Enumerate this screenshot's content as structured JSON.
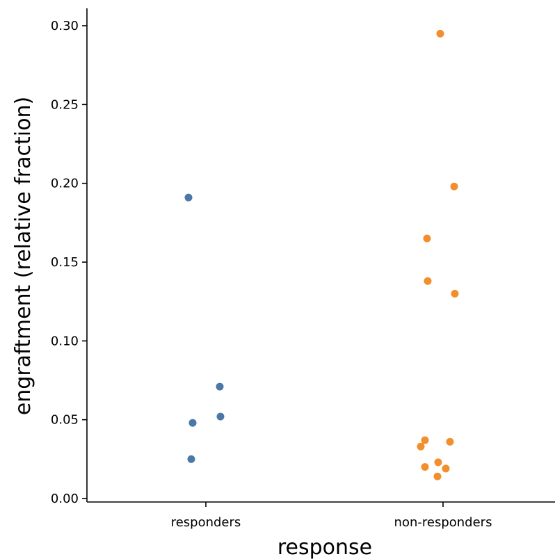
{
  "chart_data": {
    "type": "scatter",
    "xlabel": "response",
    "ylabel": "engraftment (relative fraction)",
    "categories": [
      "responders",
      "non-responders"
    ],
    "ylim": [
      -0.003,
      0.312
    ],
    "y_ticks": [
      0.0,
      0.05,
      0.1,
      0.15,
      0.2,
      0.25,
      0.3
    ],
    "y_tick_labels": [
      "0.00",
      "0.05",
      "0.10",
      "0.15",
      "0.20",
      "0.25",
      "0.30"
    ],
    "grid": false,
    "legend": "none",
    "colors": {
      "responders": "#4c78a8",
      "non-responders": "#f28e2b"
    },
    "series": [
      {
        "values": [
          0.191,
          0.071,
          0.052,
          0.048,
          0.025
        ],
        "jitter": [
          -0.25,
          0.2,
          0.21,
          -0.19,
          -0.21
        ]
      },
      {
        "values": [
          0.295,
          0.198,
          0.165,
          0.138,
          0.13,
          0.037,
          0.036,
          0.033,
          0.023,
          0.02,
          0.019,
          0.014
        ],
        "jitter": [
          -0.04,
          0.16,
          -0.23,
          -0.22,
          0.17,
          -0.26,
          0.1,
          -0.32,
          -0.07,
          -0.26,
          0.04,
          -0.08
        ]
      }
    ]
  }
}
